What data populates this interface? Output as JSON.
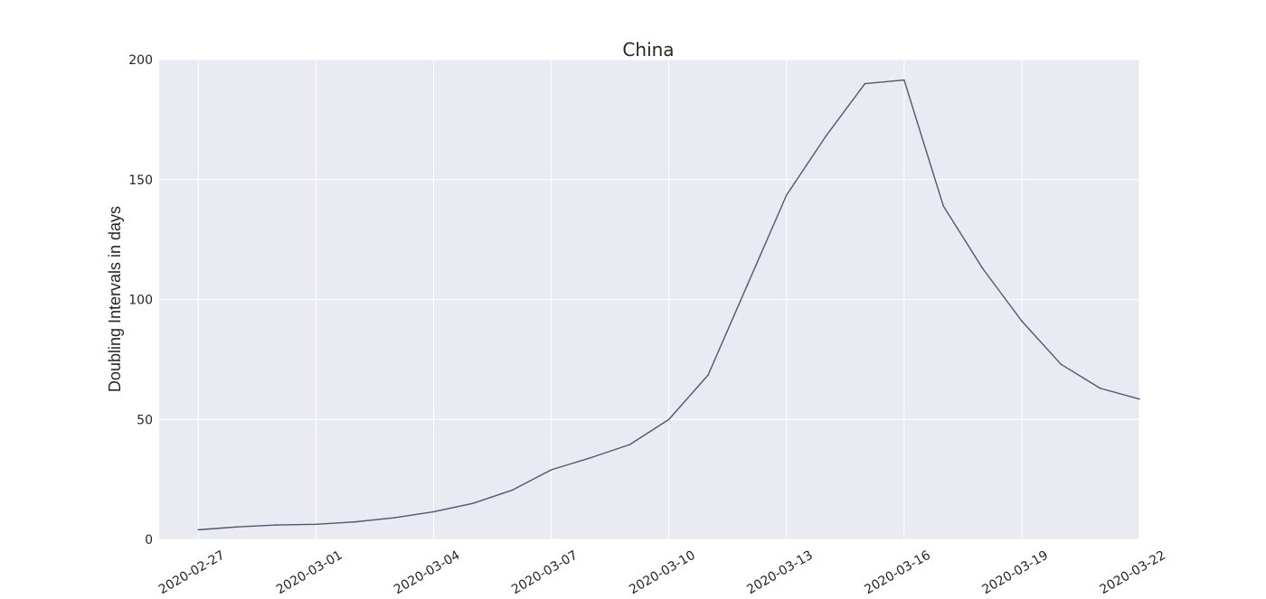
{
  "chart_data": {
    "type": "line",
    "title": "China",
    "xlabel": "",
    "ylabel": "Doubling Intervals in days",
    "ylim": [
      0,
      200
    ],
    "yticks": [
      "0",
      "50",
      "100",
      "150",
      "200"
    ],
    "yticks_values": [
      0,
      50,
      100,
      150,
      200
    ],
    "xlim": [
      "2020-02-26",
      "2020-03-22"
    ],
    "xticks": [
      "2020-02-27",
      "2020-03-01",
      "2020-03-04",
      "2020-03-07",
      "2020-03-10",
      "2020-03-13",
      "2020-03-16",
      "2020-03-19",
      "2020-03-22"
    ],
    "grid": true,
    "colors": {
      "background": "#eaeaf2",
      "grid": "#ffffff",
      "line": "#4c5a70"
    },
    "x": [
      "2020-02-27",
      "2020-02-28",
      "2020-02-29",
      "2020-03-01",
      "2020-03-02",
      "2020-03-03",
      "2020-03-04",
      "2020-03-05",
      "2020-03-06",
      "2020-03-07",
      "2020-03-08",
      "2020-03-09",
      "2020-03-10",
      "2020-03-11",
      "2020-03-12",
      "2020-03-13",
      "2020-03-14",
      "2020-03-15",
      "2020-03-16",
      "2020-03-17",
      "2020-03-18",
      "2020-03-19",
      "2020-03-20",
      "2020-03-21",
      "2020-03-22"
    ],
    "series": [
      {
        "values": [
          4.0,
          5.2,
          6.0,
          6.3,
          7.3,
          9.0,
          11.5,
          15.0,
          20.5,
          29.0,
          34.0,
          39.5,
          50.0,
          68.5,
          106.0,
          143.5,
          168.0,
          190.0,
          191.5,
          139.0,
          113.0,
          91.0,
          73.0,
          63.0,
          58.5
        ]
      }
    ]
  }
}
